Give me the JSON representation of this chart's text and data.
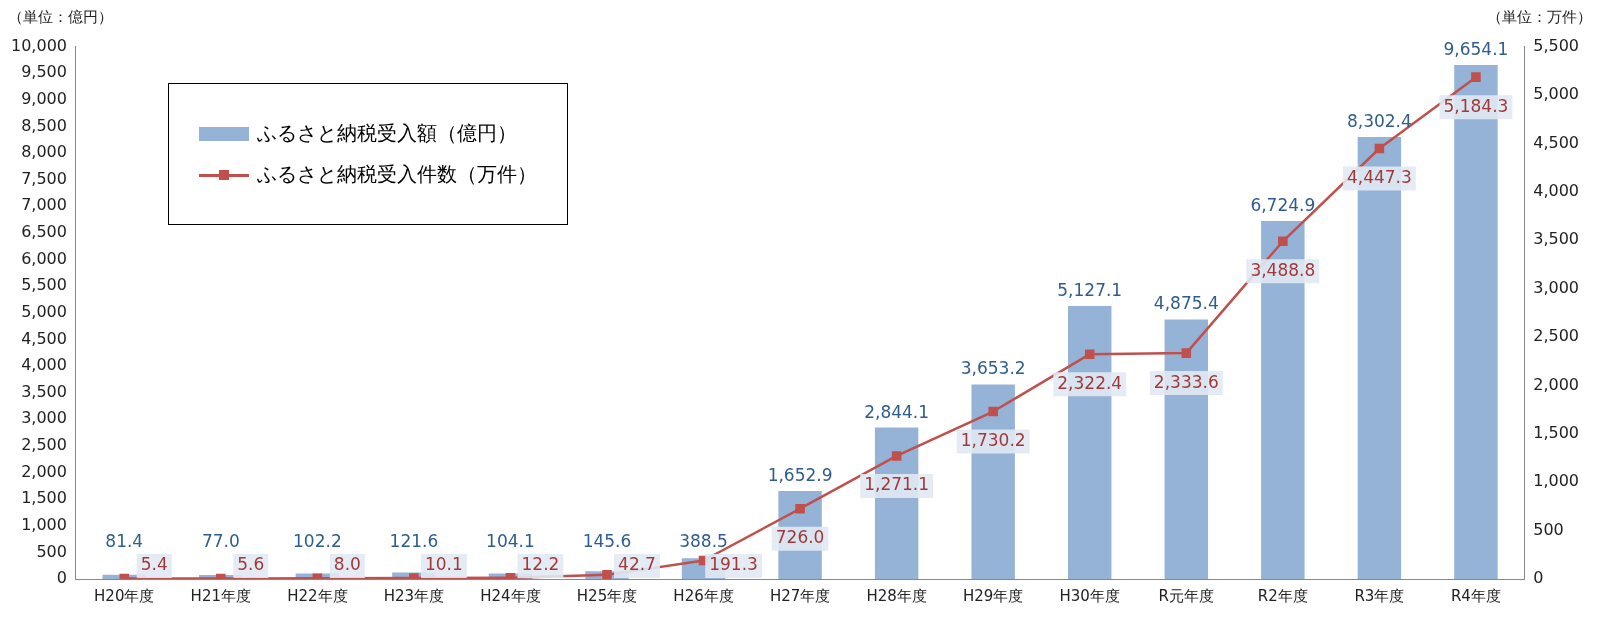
{
  "chart_data": {
    "type": "bar",
    "ylabel": "（単位：億円）",
    "y2label": "（単位：万件）",
    "categories": [
      "H20年度",
      "H21年度",
      "H22年度",
      "H23年度",
      "H24年度",
      "H25年度",
      "H26年度",
      "H27年度",
      "H28年度",
      "H29年度",
      "H30年度",
      "R元年度",
      "R2年度",
      "R3年度",
      "R4年度"
    ],
    "series": [
      {
        "name": "ふるさと納税受入額（億円）",
        "color": "#95b3d7",
        "values": [
          81.4,
          77.0,
          102.2,
          121.6,
          104.1,
          145.6,
          388.5,
          1652.9,
          2844.1,
          3653.2,
          5127.1,
          4875.4,
          6724.9,
          8302.4,
          9654.1
        ],
        "value_labels": [
          "81.4",
          "77.0",
          "102.2",
          "121.6",
          "104.1",
          "145.6",
          "388.5",
          "1,652.9",
          "2,844.1",
          "3,653.2",
          "5,127.1",
          "4,875.4",
          "6,724.9",
          "8,302.4",
          "9,654.1"
        ]
      },
      {
        "name": "ふるさと納税受入件数（万件）",
        "type": "line",
        "axis": "y2",
        "color": "#c0504d",
        "marker": "square",
        "values": [
          5.4,
          5.6,
          8.0,
          10.1,
          12.2,
          42.7,
          191.3,
          726.0,
          1271.1,
          1730.2,
          2322.4,
          2333.6,
          3488.8,
          4447.3,
          5184.3
        ],
        "value_labels": [
          "5.4",
          "5.6",
          "8.0",
          "10.1",
          "12.2",
          "42.7",
          "191.3",
          "726.0",
          "1,271.1",
          "1,730.2",
          "2,322.4",
          "2,333.6",
          "3,488.8",
          "4,447.3",
          "5,184.3"
        ]
      }
    ],
    "ylim": [
      0,
      10000
    ],
    "yticks": [
      0,
      500,
      {
        "value": 1000,
        "label": "1,000"
      },
      {
        "value": 1500,
        "label": "1,500"
      },
      {
        "value": 2000,
        "label": "2,000"
      },
      {
        "value": 2500,
        "label": "2,500"
      },
      {
        "value": 3000,
        "label": "3,000"
      },
      {
        "value": 3500,
        "label": "3,500"
      },
      {
        "value": 4000,
        "label": "4,000"
      },
      {
        "value": 4500,
        "label": "4,500"
      },
      {
        "value": 5000,
        "label": "5,000"
      },
      {
        "value": 5500,
        "label": "5,500"
      },
      {
        "value": 6000,
        "label": "6,000"
      },
      {
        "value": 6500,
        "label": "6,500"
      },
      {
        "value": 7000,
        "label": "7,000"
      },
      {
        "value": 7500,
        "label": "7,500"
      },
      {
        "value": 8000,
        "label": "8,000"
      },
      {
        "value": 8500,
        "label": "8,500"
      },
      {
        "value": 9000,
        "label": "9,000"
      },
      {
        "value": 9500,
        "label": "9,500"
      },
      {
        "value": 10000,
        "label": "10,000"
      }
    ],
    "y2lim": [
      0,
      5500
    ],
    "y2ticks": [
      0,
      500,
      {
        "value": 1000,
        "label": "1,000"
      },
      {
        "value": 1500,
        "label": "1,500"
      },
      {
        "value": 2000,
        "label": "2,000"
      },
      {
        "value": 2500,
        "label": "2,500"
      },
      {
        "value": 3000,
        "label": "3,000"
      },
      {
        "value": 3500,
        "label": "3,500"
      },
      {
        "value": 4000,
        "label": "4,000"
      },
      {
        "value": 4500,
        "label": "4,500"
      },
      {
        "value": 5000,
        "label": "5,000"
      },
      {
        "value": 5500,
        "label": "5,500"
      }
    ],
    "legend": "top left",
    "grid": false
  }
}
